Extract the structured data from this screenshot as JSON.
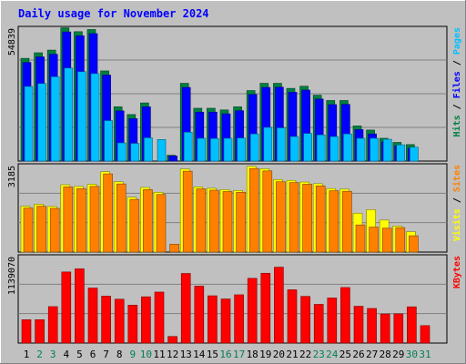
{
  "chart_data": {
    "type": "bar",
    "title": "Daily usage for November 2024",
    "categories": [
      "1",
      "2",
      "3",
      "4",
      "5",
      "6",
      "7",
      "8",
      "9",
      "10",
      "11",
      "12",
      "13",
      "14",
      "15",
      "16",
      "17",
      "18",
      "19",
      "20",
      "21",
      "22",
      "23",
      "24",
      "25",
      "26",
      "27",
      "28",
      "29",
      "30",
      "31"
    ],
    "weekend_days": [
      "2",
      "3",
      "9",
      "10",
      "16",
      "17",
      "23",
      "24",
      "30",
      "31"
    ],
    "panels": [
      {
        "name": "pages-files-hits",
        "ymax_label": "54839",
        "ymax": 54839,
        "right_labels": [
          {
            "text": "Hits",
            "color": "#008040"
          },
          {
            "text": " / ",
            "color": "#000000"
          },
          {
            "text": "Files",
            "color": "#0000FF"
          },
          {
            "text": " / ",
            "color": "#000000"
          },
          {
            "text": "Pages",
            "color": "#00C0FF"
          }
        ],
        "series": [
          {
            "name": "Hits",
            "color": "#008040",
            "values": [
              42400,
              44700,
              45800,
              55000,
              53400,
              54300,
              37200,
              22400,
              19200,
              24000,
              0,
              2400,
              32100,
              21800,
              21800,
              21100,
              22400,
              29100,
              32100,
              32100,
              30000,
              30900,
              27200,
              25000,
              25000,
              14500,
              12800,
              9400,
              7700,
              6800,
              0
            ]
          },
          {
            "name": "Files",
            "color": "#0000FF",
            "values": [
              40700,
              43000,
              44100,
              53300,
              51700,
              52600,
              35500,
              20700,
              17500,
              22400,
              0,
              2100,
              30400,
              20200,
              20200,
              19500,
              20800,
              27500,
              30400,
              30500,
              28400,
              29300,
              25600,
              23300,
              23400,
              13000,
              11200,
              7900,
              6300,
              5300,
              0
            ]
          },
          {
            "name": "Pages",
            "color": "#00C0FF",
            "values": [
              30800,
              32000,
              34800,
              38400,
              36900,
              36100,
              16700,
              7500,
              7300,
              9600,
              8900,
              0,
              11900,
              9400,
              9300,
              9400,
              9500,
              11200,
              13900,
              13700,
              10100,
              11400,
              10800,
              10100,
              11200,
              9400,
              9400,
              9000,
              6700,
              5700,
              0
            ]
          }
        ]
      },
      {
        "name": "sites-visits",
        "ymax_label": "3185",
        "ymax": 3185,
        "right_labels": [
          {
            "text": "Visits",
            "color": "#FFFF00"
          },
          {
            "text": " / ",
            "color": "#000000"
          },
          {
            "text": "Sites",
            "color": "#FF8000"
          }
        ],
        "series": [
          {
            "name": "Visits",
            "color": "#FFFF00",
            "values": [
              1690,
              1760,
              1680,
              2480,
              2420,
              2500,
              2960,
              2590,
              2020,
              2380,
              2200,
              0,
              3060,
              2400,
              2350,
              2300,
              2270,
              3160,
              3070,
              2670,
              2640,
              2580,
              2520,
              2340,
              2320,
              1430,
              1560,
              1180,
              960,
              750,
              0
            ]
          },
          {
            "name": "Sites",
            "color": "#FF8000",
            "values": [
              1620,
              1690,
              1610,
              2400,
              2340,
              2420,
              2880,
              2510,
              1940,
              2300,
              2120,
              290,
              2980,
              2330,
              2280,
              2230,
              2200,
              3080,
              2990,
              2590,
              2560,
              2500,
              2440,
              2260,
              2240,
              1000,
              920,
              880,
              900,
              600,
              0
            ]
          }
        ]
      },
      {
        "name": "kbytes",
        "ymax_label": "1139070",
        "ymax": 1139070,
        "right_labels": [
          {
            "text": "KBytes",
            "color": "#FF0000"
          }
        ],
        "series": [
          {
            "name": "KBytes",
            "color": "#FF0000",
            "values": [
              308000,
              308000,
              480000,
              937000,
              978000,
              725000,
              618000,
              578000,
              499000,
              610000,
              672000,
              87000,
              917000,
              750000,
              623000,
              581000,
              636000,
              853000,
              920000,
              1000000,
              702000,
              615000,
              510000,
              594000,
              732000,
              485000,
              456000,
              383000,
              385000,
              478000,
              230000
            ]
          }
        ]
      }
    ]
  }
}
